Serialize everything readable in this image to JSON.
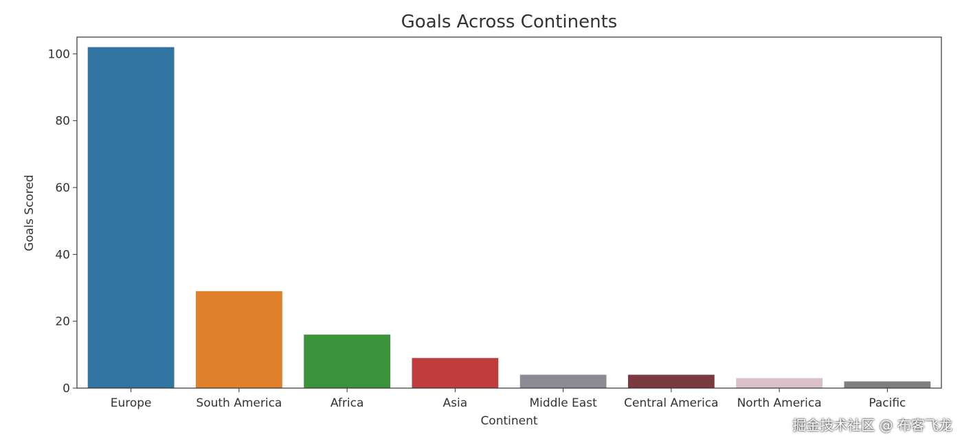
{
  "chart_data": {
    "type": "bar",
    "title": "Goals Across Continents",
    "xlabel": "Continent",
    "ylabel": "Goals Scored",
    "categories": [
      "Europe",
      "South America",
      "Africa",
      "Asia",
      "Middle East",
      "Central America",
      "North America",
      "Pacific"
    ],
    "values": [
      102,
      29,
      16,
      9,
      4,
      4,
      3,
      2
    ],
    "colors": [
      "#3274a1",
      "#e1812c",
      "#3a923a",
      "#c03d3e",
      "#8c8a94",
      "#7b3a40",
      "#d9c0ca",
      "#7f7f7f"
    ],
    "ylim": [
      0,
      105
    ],
    "yticks": [
      0,
      20,
      40,
      60,
      80,
      100
    ],
    "grid": false,
    "legend": "none"
  },
  "watermark": "掘金技术社区 @ 布客飞龙"
}
